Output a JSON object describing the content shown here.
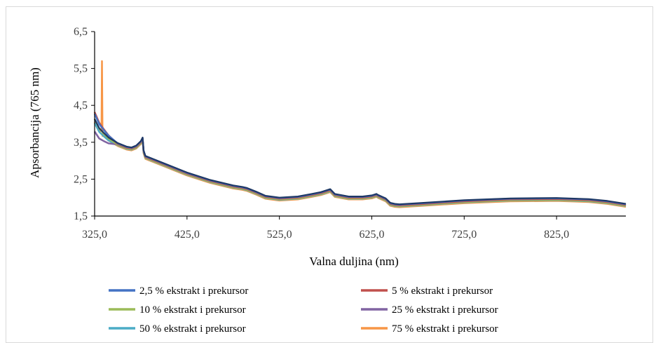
{
  "chart_data": {
    "type": "line",
    "title": "",
    "xlabel": "Valna duljina (nm)",
    "ylabel": "Apsorbancija (765 nm)",
    "xlim": [
      325,
      900
    ],
    "ylim": [
      1.5,
      6.5
    ],
    "x_ticks": [
      "325,0",
      "425,0",
      "525,0",
      "625,0",
      "725,0",
      "825,0"
    ],
    "y_ticks": [
      "1,5",
      "2,5",
      "3,5",
      "4,5",
      "5,5",
      "6,5"
    ],
    "grid": false,
    "legend_position": "bottom",
    "base_curve": {
      "x": [
        325,
        330,
        335,
        340,
        350,
        360,
        365,
        370,
        375,
        377,
        378,
        380,
        390,
        400,
        425,
        450,
        475,
        485,
        490,
        500,
        510,
        525,
        545,
        560,
        570,
        575,
        580,
        585,
        600,
        615,
        625,
        630,
        632,
        640,
        645,
        650,
        655,
        675,
        725,
        775,
        825,
        860,
        880,
        900
      ],
      "y": [
        4.1,
        3.85,
        3.72,
        3.6,
        3.45,
        3.35,
        3.33,
        3.38,
        3.5,
        3.6,
        3.25,
        3.1,
        3.0,
        2.9,
        2.65,
        2.45,
        2.3,
        2.26,
        2.23,
        2.13,
        2.02,
        1.97,
        2.0,
        2.07,
        2.12,
        2.16,
        2.2,
        2.07,
        2.0,
        2.0,
        2.03,
        2.07,
        2.04,
        1.95,
        1.83,
        1.8,
        1.79,
        1.82,
        1.9,
        1.95,
        1.96,
        1.93,
        1.88,
        1.8
      ]
    },
    "series": [
      {
        "name": "2,5 % ekstrakt i prekursor",
        "color": "#4472c4",
        "offset": 0.02,
        "start_shift": 0.15,
        "spike": null
      },
      {
        "name": "5 % ekstrakt i prekursor",
        "color": "#c0504d",
        "offset": 0.0,
        "start_shift": 0.22,
        "spike": null
      },
      {
        "name": "10 % ekstrakt i prekursor",
        "color": "#9bbb59",
        "offset": -0.02,
        "start_shift": 0.05,
        "spike": null
      },
      {
        "name": "25 % ekstrakt i prekursor",
        "color": "#8064a2",
        "offset": -0.01,
        "start_shift": -0.3,
        "spike": null
      },
      {
        "name": "50 % ekstrakt i prekursor",
        "color": "#4bacc6",
        "offset": -0.03,
        "start_shift": -0.05,
        "spike": null
      },
      {
        "name": "75 % ekstrakt i prekursor",
        "color": "#f79646",
        "offset": -0.05,
        "start_shift": 0.0,
        "spike": {
          "x": 333,
          "y": 5.7
        }
      }
    ],
    "overlay_color": "#1f3864"
  }
}
